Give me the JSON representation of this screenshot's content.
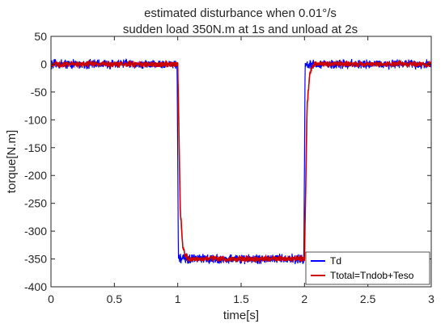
{
  "chart_data": {
    "type": "line",
    "title": [
      "estimated disturbance when 0.01°/s",
      "sudden load 350N.m at 1s and unload at 2s"
    ],
    "xlabel": "time[s]",
    "ylabel": "torque[N.m]",
    "xlim": [
      0,
      3
    ],
    "ylim": [
      -400,
      50
    ],
    "xticks": [
      0,
      0.5,
      1,
      1.5,
      2,
      2.5,
      3
    ],
    "xtick_labels": [
      "0",
      "0.5",
      "1",
      "1.5",
      "2",
      "2.5",
      "3"
    ],
    "yticks": [
      50,
      0,
      -50,
      -100,
      -150,
      -200,
      -250,
      -300,
      -350,
      -400
    ],
    "ytick_labels": [
      "50",
      "0",
      "-50",
      "-100",
      "-150",
      "-200",
      "-250",
      "-300",
      "-350",
      "-400"
    ],
    "grid": false,
    "legend_position": "bottom-right",
    "series": [
      {
        "name": "Td",
        "color": "#0000ff",
        "x": [
          0,
          0.995,
          1.0,
          1.005,
          1.995,
          2.0,
          2.005,
          3
        ],
        "y": [
          0,
          0,
          -175,
          -350,
          -350,
          -175,
          0,
          0
        ],
        "noise_amplitude": 10
      },
      {
        "name": "Ttotal=Tndob+Teso",
        "color": "#cc0000",
        "x": [
          0,
          1.0,
          1.02,
          1.04,
          1.06,
          1.08,
          1.1,
          1.2,
          2.0,
          2.02,
          2.04,
          2.06,
          2.08,
          2.1,
          3
        ],
        "y": [
          0,
          0,
          -260,
          -330,
          -345,
          -349,
          -350,
          -350,
          -350,
          -80,
          -20,
          -5,
          -1,
          0,
          0
        ],
        "noise_amplitude": 6
      }
    ]
  }
}
